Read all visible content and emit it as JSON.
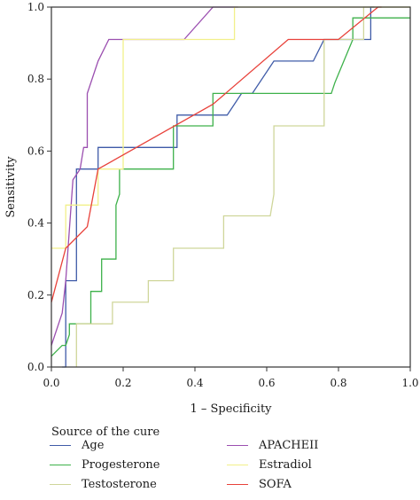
{
  "chart_data": {
    "type": "line",
    "xlabel": "1 – Specificity",
    "ylabel": "Sensitivity",
    "xlim": [
      0,
      1.0
    ],
    "ylim": [
      0,
      1.0
    ],
    "x_ticks": [
      "0.0",
      "0.2",
      "0.4",
      "0.6",
      "0.8",
      "1.0"
    ],
    "y_ticks": [
      "0.0",
      "0.2",
      "0.4",
      "0.6",
      "0.8",
      "1.0"
    ],
    "grid": false,
    "legend_title": "Source of the cure",
    "legend_position": "bottom",
    "series": [
      {
        "name": "Age",
        "color": "#3f5ba8",
        "points": [
          [
            0.03,
            0.0
          ],
          [
            0.04,
            0.0
          ],
          [
            0.04,
            0.24
          ],
          [
            0.07,
            0.24
          ],
          [
            0.07,
            0.55
          ],
          [
            0.13,
            0.55
          ],
          [
            0.13,
            0.61
          ],
          [
            0.35,
            0.61
          ],
          [
            0.35,
            0.7
          ],
          [
            0.49,
            0.7
          ],
          [
            0.53,
            0.76
          ],
          [
            0.56,
            0.76
          ],
          [
            0.62,
            0.85
          ],
          [
            0.73,
            0.85
          ],
          [
            0.76,
            0.91
          ],
          [
            0.84,
            0.91
          ],
          [
            0.84,
            0.91
          ],
          [
            0.89,
            0.91
          ],
          [
            0.89,
            1.0
          ],
          [
            0.9,
            1.0
          ]
        ]
      },
      {
        "name": "Progesterone",
        "color": "#3db14a",
        "points": [
          [
            0.0,
            0.03
          ],
          [
            0.03,
            0.06
          ],
          [
            0.04,
            0.06
          ],
          [
            0.05,
            0.09
          ],
          [
            0.05,
            0.12
          ],
          [
            0.11,
            0.12
          ],
          [
            0.11,
            0.21
          ],
          [
            0.14,
            0.21
          ],
          [
            0.14,
            0.3
          ],
          [
            0.18,
            0.3
          ],
          [
            0.18,
            0.45
          ],
          [
            0.19,
            0.48
          ],
          [
            0.19,
            0.55
          ],
          [
            0.34,
            0.55
          ],
          [
            0.34,
            0.67
          ],
          [
            0.45,
            0.67
          ],
          [
            0.45,
            0.76
          ],
          [
            0.78,
            0.76
          ],
          [
            0.79,
            0.79
          ],
          [
            0.84,
            0.91
          ],
          [
            0.84,
            0.97
          ],
          [
            1.0,
            0.97
          ]
        ]
      },
      {
        "name": "Testosterone",
        "color": "#cfd69a",
        "points": [
          [
            0.07,
            0.0
          ],
          [
            0.07,
            0.12
          ],
          [
            0.17,
            0.12
          ],
          [
            0.17,
            0.18
          ],
          [
            0.27,
            0.18
          ],
          [
            0.27,
            0.24
          ],
          [
            0.34,
            0.24
          ],
          [
            0.34,
            0.33
          ],
          [
            0.48,
            0.33
          ],
          [
            0.48,
            0.42
          ],
          [
            0.61,
            0.42
          ],
          [
            0.62,
            0.48
          ],
          [
            0.62,
            0.67
          ],
          [
            0.76,
            0.67
          ],
          [
            0.76,
            0.91
          ],
          [
            0.87,
            0.91
          ],
          [
            0.87,
            1.0
          ],
          [
            1.0,
            1.0
          ]
        ]
      },
      {
        "name": "APACHEII",
        "color": "#9b4fb0",
        "points": [
          [
            0.0,
            0.06
          ],
          [
            0.03,
            0.15
          ],
          [
            0.04,
            0.24
          ],
          [
            0.06,
            0.52
          ],
          [
            0.08,
            0.55
          ],
          [
            0.09,
            0.61
          ],
          [
            0.1,
            0.61
          ],
          [
            0.1,
            0.76
          ],
          [
            0.13,
            0.85
          ],
          [
            0.16,
            0.91
          ],
          [
            0.37,
            0.91
          ],
          [
            0.45,
            1.0
          ],
          [
            0.52,
            1.0
          ]
        ]
      },
      {
        "name": "Estradiol",
        "color": "#f2f08a",
        "points": [
          [
            0.0,
            0.33
          ],
          [
            0.04,
            0.33
          ],
          [
            0.04,
            0.45
          ],
          [
            0.07,
            0.45
          ],
          [
            0.07,
            0.45
          ],
          [
            0.13,
            0.45
          ],
          [
            0.13,
            0.55
          ],
          [
            0.2,
            0.55
          ],
          [
            0.2,
            0.91
          ],
          [
            0.51,
            0.91
          ],
          [
            0.51,
            1.0
          ],
          [
            1.0,
            1.0
          ]
        ]
      },
      {
        "name": "SOFA",
        "color": "#e8413a",
        "points": [
          [
            0.0,
            0.18
          ],
          [
            0.04,
            0.33
          ],
          [
            0.1,
            0.39
          ],
          [
            0.13,
            0.55
          ],
          [
            0.45,
            0.73
          ],
          [
            0.66,
            0.91
          ],
          [
            0.8,
            0.91
          ],
          [
            0.91,
            1.0
          ],
          [
            0.92,
            1.0
          ]
        ]
      }
    ]
  },
  "legend_layout": [
    {
      "series": 0,
      "col": 0,
      "row": 0
    },
    {
      "series": 1,
      "col": 0,
      "row": 1
    },
    {
      "series": 2,
      "col": 0,
      "row": 2
    },
    {
      "series": 3,
      "col": 1,
      "row": 0
    },
    {
      "series": 4,
      "col": 1,
      "row": 1
    },
    {
      "series": 5,
      "col": 1,
      "row": 2
    }
  ]
}
